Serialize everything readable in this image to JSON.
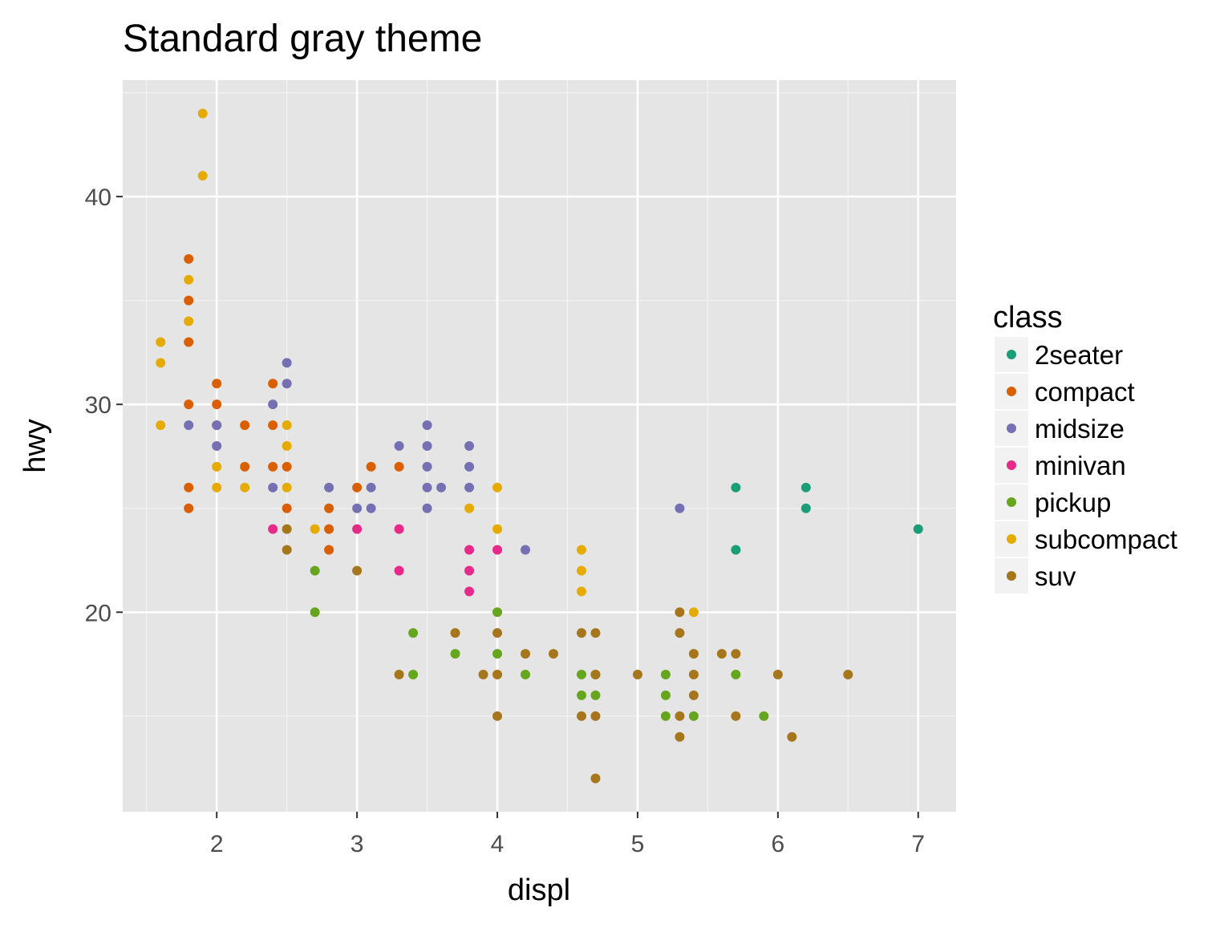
{
  "chart_data": {
    "type": "scatter",
    "title": "Standard gray theme",
    "x_label": "displ",
    "y_label": "hwy",
    "legend_title": "class",
    "legend_position": "right",
    "grid": true,
    "xlim": [
      1.33,
      7.27
    ],
    "ylim": [
      10.4,
      45.6
    ],
    "xticks": [
      2,
      3,
      4,
      5,
      6,
      7
    ],
    "yticks": [
      20,
      30,
      40
    ],
    "x_minor_grid": [
      1.5,
      2.5,
      3.5,
      4.5,
      5.5,
      6.5
    ],
    "y_minor_grid": [
      15,
      25,
      35,
      45
    ],
    "series": [
      {
        "name": "2seater",
        "color": "#1b9e77",
        "x": [
          5.7,
          6.2,
          6.2,
          7.0,
          5.7
        ],
        "y": [
          26,
          26,
          25,
          24,
          23
        ]
      },
      {
        "name": "compact",
        "color": "#d95f02",
        "x": [
          1.8,
          1.8,
          1.8,
          1.8,
          1.8,
          1.8,
          2.0,
          2.0,
          2.0,
          2.2,
          2.2,
          2.4,
          2.4,
          2.4,
          2.5,
          2.5,
          2.8,
          2.8,
          2.8,
          3.0,
          3.1,
          3.3
        ],
        "y": [
          37,
          35,
          33,
          30,
          26,
          25,
          31,
          30,
          29,
          29,
          27,
          31,
          29,
          27,
          27,
          25,
          25,
          24,
          23,
          26,
          27,
          27
        ]
      },
      {
        "name": "midsize",
        "color": "#7570b3",
        "x": [
          1.8,
          2.0,
          2.0,
          2.4,
          2.4,
          2.5,
          2.5,
          2.8,
          3.0,
          3.1,
          3.1,
          3.3,
          3.5,
          3.5,
          3.5,
          3.5,
          3.5,
          3.6,
          3.8,
          3.8,
          3.8,
          4.2,
          5.3
        ],
        "y": [
          29,
          29,
          28,
          30,
          26,
          32,
          31,
          26,
          25,
          26,
          25,
          28,
          29,
          28,
          27,
          26,
          25,
          26,
          28,
          27,
          26,
          23,
          25
        ]
      },
      {
        "name": "minivan",
        "color": "#e7298a",
        "x": [
          2.4,
          3.0,
          3.3,
          3.3,
          3.8,
          3.8,
          3.8,
          4.0
        ],
        "y": [
          24,
          24,
          24,
          22,
          23,
          22,
          21,
          23
        ]
      },
      {
        "name": "pickup",
        "color": "#66a61e",
        "x": [
          2.7,
          2.7,
          3.4,
          3.4,
          3.7,
          4.0,
          4.0,
          4.2,
          4.6,
          4.6,
          4.7,
          4.7,
          5.2,
          5.2,
          5.2,
          5.4,
          5.7,
          5.9
        ],
        "y": [
          22,
          20,
          19,
          17,
          18,
          20,
          18,
          17,
          17,
          16,
          17,
          16,
          17,
          16,
          15,
          15,
          17,
          15
        ]
      },
      {
        "name": "subcompact",
        "color": "#e6ab02",
        "x": [
          1.6,
          1.6,
          1.6,
          1.8,
          1.8,
          1.9,
          1.9,
          2.0,
          2.0,
          2.2,
          2.5,
          2.5,
          2.5,
          2.7,
          3.8,
          4.0,
          4.0,
          4.6,
          4.6,
          4.6,
          5.4
        ],
        "y": [
          33,
          32,
          29,
          36,
          34,
          44,
          41,
          27,
          26,
          26,
          29,
          28,
          26,
          24,
          25,
          26,
          24,
          23,
          22,
          21,
          20
        ]
      },
      {
        "name": "suv",
        "color": "#a6761d",
        "x": [
          2.5,
          2.5,
          3.0,
          3.3,
          3.7,
          3.9,
          4.0,
          4.0,
          4.0,
          4.2,
          4.4,
          4.6,
          4.6,
          4.7,
          4.7,
          4.7,
          4.7,
          5.0,
          5.3,
          5.3,
          5.3,
          5.3,
          5.4,
          5.4,
          5.4,
          5.6,
          5.7,
          5.7,
          6.0,
          6.1,
          6.5
        ],
        "y": [
          24,
          23,
          22,
          17,
          19,
          17,
          19,
          17,
          15,
          18,
          18,
          19,
          15,
          19,
          17,
          15,
          12,
          17,
          20,
          19,
          15,
          14,
          18,
          17,
          16,
          18,
          18,
          15,
          17,
          14,
          17
        ]
      }
    ]
  }
}
